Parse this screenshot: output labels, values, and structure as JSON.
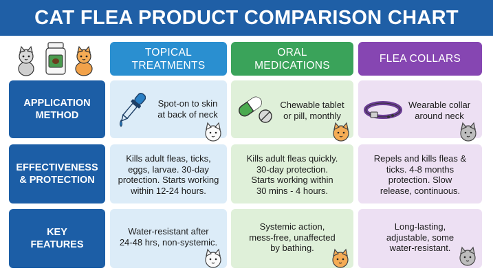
{
  "title": "CAT FLEA PRODUCT COMPARISON CHART",
  "columns": {
    "topical": {
      "line1": "TOPICAL",
      "line2": "TREATMENTS",
      "color": "#2a8fd0"
    },
    "oral": {
      "line1": "ORAL",
      "line2": "MEDICATIONS",
      "color": "#3aa35a"
    },
    "collars": {
      "line1": "FLEA COLLARS",
      "color": "#8646b2"
    }
  },
  "rows": {
    "application": {
      "line1": "APPLICATION",
      "line2": "METHOD"
    },
    "effectiveness": {
      "line1": "EFFECTIVENESS",
      "line2": "& PROTECTION"
    },
    "features": {
      "line1": "KEY",
      "line2": "FEATURES"
    }
  },
  "cells": {
    "application": {
      "topical": [
        "Spot-on to skin",
        "at back of neck"
      ],
      "oral": [
        "Chewable tablet",
        "or pill, monthly"
      ],
      "collars": [
        "Wearable collar",
        "around neck"
      ]
    },
    "effectiveness": {
      "topical": [
        "Kills adult fleas, ticks,",
        "eggs, larvae. 30-day",
        "protection. Starts working",
        "within 12-24 hours."
      ],
      "oral": [
        "Kills adult fleas quickly.",
        "30-day protection.",
        "Starts working within",
        "30 mins - 4 hours."
      ],
      "collars": [
        "Repels and kills fleas &",
        "ticks. 4-8 months",
        "protection. Slow",
        "release, continuous."
      ]
    },
    "features": {
      "topical": [
        "Water-resistant after",
        "24-48 hrs, non-systemic."
      ],
      "oral": [
        "Systemic action,",
        "mess-free, unaffected",
        "by bathing."
      ],
      "collars": [
        "Long-lasting,",
        "adjustable, some",
        "water-resistant."
      ]
    }
  },
  "icons": [
    "dropper-icon",
    "pill-icon",
    "collar-icon",
    "white-cat-icon",
    "orange-cat-icon",
    "gray-cat-icon",
    "medicine-bottle-icon"
  ]
}
